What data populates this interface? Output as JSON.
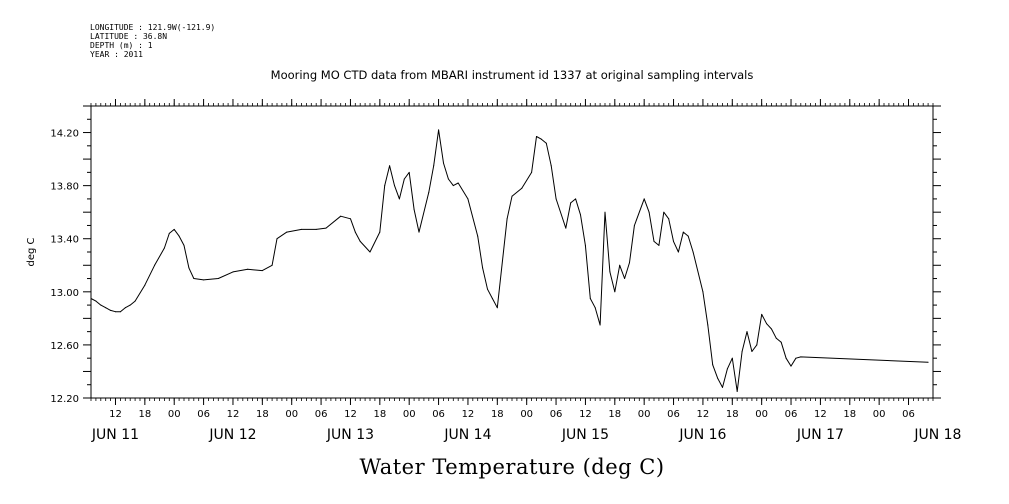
{
  "meta": {
    "longitude": "LONGITUDE : 121.9W(-121.9)",
    "latitude": "LATITUDE : 36.8N",
    "depth": "DEPTH (m) : 1",
    "year": "YEAR : 2011"
  },
  "chart_data": {
    "type": "line",
    "title": "Mooring MO CTD data from MBARI instrument id 1337 at original sampling intervals",
    "ylabel": "deg C",
    "xlabel": "Water Temperature (deg C)",
    "ylim": [
      12.2,
      14.4
    ],
    "xlim": [
      "2011-06-11T07:00",
      "2011-06-18T11:00"
    ],
    "y_ticks": [
      "12.20",
      "12.60",
      "13.00",
      "13.40",
      "13.80",
      "14.20"
    ],
    "x_hour_ticks": [
      {
        "t": "2011-06-11T12:00",
        "label": "12"
      },
      {
        "t": "2011-06-11T18:00",
        "label": "18"
      },
      {
        "t": "2011-06-12T00:00",
        "label": "00"
      },
      {
        "t": "2011-06-12T06:00",
        "label": "06"
      },
      {
        "t": "2011-06-12T12:00",
        "label": "12"
      },
      {
        "t": "2011-06-12T18:00",
        "label": "18"
      },
      {
        "t": "2011-06-13T00:00",
        "label": "00"
      },
      {
        "t": "2011-06-13T06:00",
        "label": "06"
      },
      {
        "t": "2011-06-13T12:00",
        "label": "12"
      },
      {
        "t": "2011-06-13T18:00",
        "label": "18"
      },
      {
        "t": "2011-06-14T00:00",
        "label": "00"
      },
      {
        "t": "2011-06-14T06:00",
        "label": "06"
      },
      {
        "t": "2011-06-14T12:00",
        "label": "12"
      },
      {
        "t": "2011-06-14T18:00",
        "label": "18"
      },
      {
        "t": "2011-06-15T00:00",
        "label": "00"
      },
      {
        "t": "2011-06-15T06:00",
        "label": "06"
      },
      {
        "t": "2011-06-15T12:00",
        "label": "12"
      },
      {
        "t": "2011-06-15T18:00",
        "label": "18"
      },
      {
        "t": "2011-06-16T00:00",
        "label": "00"
      },
      {
        "t": "2011-06-16T06:00",
        "label": "06"
      },
      {
        "t": "2011-06-16T12:00",
        "label": "12"
      },
      {
        "t": "2011-06-16T18:00",
        "label": "18"
      },
      {
        "t": "2011-06-17T00:00",
        "label": "00"
      },
      {
        "t": "2011-06-17T06:00",
        "label": "06"
      },
      {
        "t": "2011-06-17T12:00",
        "label": "12"
      },
      {
        "t": "2011-06-17T18:00",
        "label": "18"
      },
      {
        "t": "2011-06-18T00:00",
        "label": "00"
      },
      {
        "t": "2011-06-18T06:00",
        "label": "06"
      }
    ],
    "x_day_labels": [
      {
        "t": "2011-06-11T12:00",
        "label": "JUN 11"
      },
      {
        "t": "2011-06-12T12:00",
        "label": "JUN 12"
      },
      {
        "t": "2011-06-13T12:00",
        "label": "JUN 13"
      },
      {
        "t": "2011-06-14T12:00",
        "label": "JUN 14"
      },
      {
        "t": "2011-06-15T12:00",
        "label": "JUN 15"
      },
      {
        "t": "2011-06-16T12:00",
        "label": "JUN 16"
      },
      {
        "t": "2011-06-17T12:00",
        "label": "JUN 17"
      },
      {
        "t": "2011-06-18T12:00",
        "label": "JUN 18"
      }
    ],
    "series": [
      {
        "x": [
          "2011-06-11T07:00",
          "2011-06-11T08:00",
          "2011-06-11T09:00",
          "2011-06-11T10:00",
          "2011-06-11T11:00",
          "2011-06-11T12:00",
          "2011-06-11T13:00",
          "2011-06-11T14:00",
          "2011-06-11T15:00",
          "2011-06-11T16:00",
          "2011-06-11T18:00",
          "2011-06-11T20:00",
          "2011-06-11T22:00",
          "2011-06-11T23:00",
          "2011-06-12T00:00",
          "2011-06-12T01:00",
          "2011-06-12T02:00",
          "2011-06-12T03:00",
          "2011-06-12T04:00",
          "2011-06-12T06:00",
          "2011-06-12T09:00",
          "2011-06-12T12:00",
          "2011-06-12T15:00",
          "2011-06-12T18:00",
          "2011-06-12T20:00",
          "2011-06-12T21:00",
          "2011-06-12T23:00",
          "2011-06-13T02:00",
          "2011-06-13T05:00",
          "2011-06-13T07:00",
          "2011-06-13T10:00",
          "2011-06-13T12:00",
          "2011-06-13T13:00",
          "2011-06-13T14:00",
          "2011-06-13T16:00",
          "2011-06-13T18:00",
          "2011-06-13T19:00",
          "2011-06-13T20:00",
          "2011-06-13T21:00",
          "2011-06-13T22:00",
          "2011-06-13T23:00",
          "2011-06-14T00:00",
          "2011-06-14T01:00",
          "2011-06-14T02:00",
          "2011-06-14T04:00",
          "2011-06-14T05:00",
          "2011-06-14T06:00",
          "2011-06-14T07:00",
          "2011-06-14T08:00",
          "2011-06-14T09:00",
          "2011-06-14T10:00",
          "2011-06-14T12:00",
          "2011-06-14T14:00",
          "2011-06-14T15:00",
          "2011-06-14T16:00",
          "2011-06-14T17:00",
          "2011-06-14T18:00",
          "2011-06-14T20:00",
          "2011-06-14T21:00",
          "2011-06-14T23:00",
          "2011-06-15T01:00",
          "2011-06-15T02:00",
          "2011-06-15T03:00",
          "2011-06-15T04:00",
          "2011-06-15T05:00",
          "2011-06-15T06:00",
          "2011-06-15T08:00",
          "2011-06-15T09:00",
          "2011-06-15T10:00",
          "2011-06-15T11:00",
          "2011-06-15T12:00",
          "2011-06-15T13:00",
          "2011-06-15T14:00",
          "2011-06-15T15:00",
          "2011-06-15T16:00",
          "2011-06-15T17:00",
          "2011-06-15T18:00",
          "2011-06-15T19:00",
          "2011-06-15T20:00",
          "2011-06-15T21:00",
          "2011-06-15T22:00",
          "2011-06-16T00:00",
          "2011-06-16T01:00",
          "2011-06-16T02:00",
          "2011-06-16T03:00",
          "2011-06-16T04:00",
          "2011-06-16T05:00",
          "2011-06-16T06:00",
          "2011-06-16T07:00",
          "2011-06-16T08:00",
          "2011-06-16T09:00",
          "2011-06-16T10:00",
          "2011-06-16T12:00",
          "2011-06-16T13:00",
          "2011-06-16T14:00",
          "2011-06-16T15:00",
          "2011-06-16T16:00",
          "2011-06-16T17:00",
          "2011-06-16T18:00",
          "2011-06-16T19:00",
          "2011-06-16T20:00",
          "2011-06-16T21:00",
          "2011-06-16T22:00",
          "2011-06-16T23:00",
          "2011-06-17T00:00",
          "2011-06-17T01:00",
          "2011-06-17T02:00",
          "2011-06-17T03:00",
          "2011-06-17T04:00",
          "2011-06-17T05:00",
          "2011-06-17T06:00",
          "2011-06-17T07:00",
          "2011-06-17T08:00",
          "2011-06-18T10:00"
        ],
        "y": [
          12.95,
          12.93,
          12.9,
          12.88,
          12.86,
          12.85,
          12.85,
          12.88,
          12.9,
          12.93,
          13.05,
          13.2,
          13.33,
          13.44,
          13.47,
          13.42,
          13.35,
          13.18,
          13.1,
          13.09,
          13.1,
          13.15,
          13.17,
          13.16,
          13.2,
          13.4,
          13.45,
          13.47,
          13.47,
          13.48,
          13.57,
          13.55,
          13.45,
          13.38,
          13.3,
          13.45,
          13.8,
          13.95,
          13.8,
          13.7,
          13.85,
          13.9,
          13.62,
          13.45,
          13.75,
          13.95,
          14.22,
          13.97,
          13.85,
          13.8,
          13.82,
          13.7,
          13.42,
          13.18,
          13.02,
          12.95,
          12.88,
          13.55,
          13.72,
          13.78,
          13.9,
          14.17,
          14.15,
          14.12,
          13.95,
          13.7,
          13.48,
          13.67,
          13.7,
          13.58,
          13.35,
          12.95,
          12.88,
          12.75,
          13.6,
          13.15,
          13.0,
          13.2,
          13.1,
          13.22,
          13.5,
          13.7,
          13.6,
          13.38,
          13.35,
          13.6,
          13.55,
          13.38,
          13.3,
          13.45,
          13.42,
          13.3,
          13.0,
          12.75,
          12.45,
          12.35,
          12.28,
          12.42,
          12.5,
          12.25,
          12.55,
          12.7,
          12.55,
          12.6,
          12.83,
          12.76,
          12.72,
          12.65,
          12.62,
          12.5,
          12.44,
          12.5,
          12.51,
          12.47
        ]
      }
    ]
  }
}
